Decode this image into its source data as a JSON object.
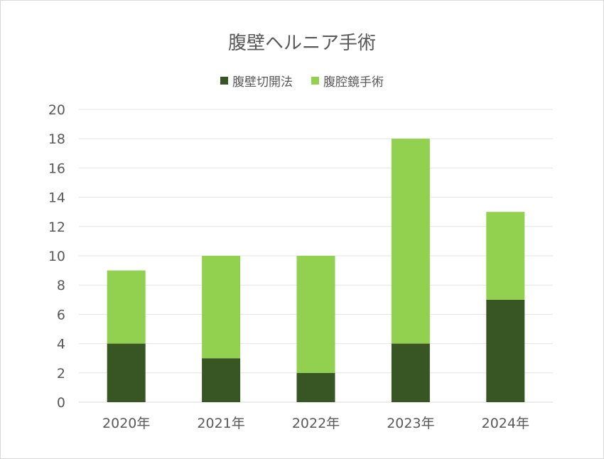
{
  "chart_data": {
    "type": "bar",
    "stacked": true,
    "title": "腹壁ヘルニア手術",
    "categories": [
      "2020年",
      "2021年",
      "2022年",
      "2023年",
      "2024年"
    ],
    "series": [
      {
        "name": "腹壁切開法",
        "color": "#375623",
        "values": [
          4,
          3,
          2,
          4,
          7
        ]
      },
      {
        "name": "腹腔鏡手術",
        "color": "#92d050",
        "values": [
          5,
          7,
          8,
          14,
          6
        ]
      }
    ],
    "ylim": [
      0,
      20
    ],
    "yticks": [
      0,
      2,
      4,
      6,
      8,
      10,
      12,
      14,
      16,
      18,
      20
    ],
    "grid": true,
    "legend_position": "top"
  }
}
